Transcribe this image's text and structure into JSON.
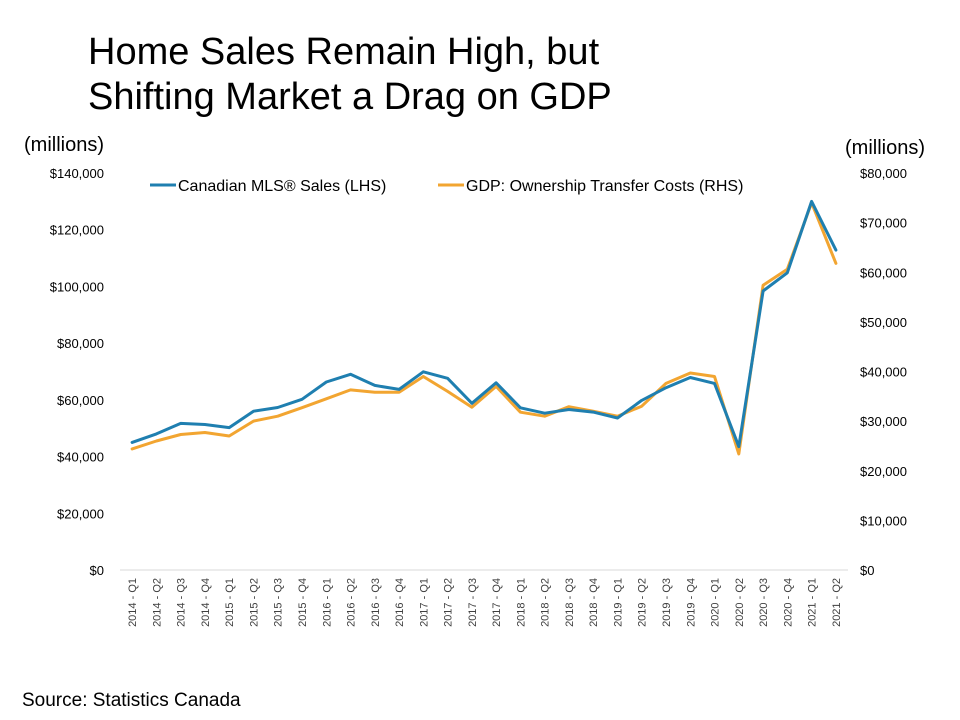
{
  "title_lines": [
    "Home Sales Remain High, but",
    "Shifting Market a Drag on GDP"
  ],
  "left_unit": "(millions)",
  "right_unit": "(millions)",
  "source": "Source: Statistics Canada",
  "colors": {
    "lhs": "#1f7fb0",
    "rhs": "#f2a531"
  },
  "chart_data": {
    "type": "line",
    "title": "Home Sales Remain High, but Shifting Market a Drag on GDP",
    "categories": [
      "2014 - Q1",
      "2014 - Q2",
      "2014 - Q3",
      "2014 - Q4",
      "2015 - Q1",
      "2015 - Q2",
      "2015 - Q3",
      "2015 - Q4",
      "2016 - Q1",
      "2016 - Q2",
      "2016 - Q3",
      "2016 - Q4",
      "2017 - Q1",
      "2017 - Q2",
      "2017 - Q3",
      "2017 - Q4",
      "2018 - Q1",
      "2018 - Q2",
      "2018 - Q3",
      "2018 - Q4",
      "2019 - Q1",
      "2019 - Q2",
      "2019 - Q3",
      "2019 - Q4",
      "2020 - Q1",
      "2020 - Q2",
      "2020 - Q3",
      "2020 - Q4",
      "2021 - Q1",
      "2021 - Q2"
    ],
    "left_axis": {
      "min": 0,
      "max": 140000,
      "ticks": [
        "$0",
        "$20,000",
        "$40,000",
        "$60,000",
        "$80,000",
        "$100,000",
        "$120,000",
        "$140,000"
      ]
    },
    "right_axis": {
      "min": 0,
      "max": 80000,
      "ticks": [
        "$0",
        "$10,000",
        "$20,000",
        "$30,000",
        "$40,000",
        "$50,000",
        "$60,000",
        "$70,000",
        "$80,000"
      ]
    },
    "series": [
      {
        "name": "Canadian MLS® Sales (LHS)",
        "axis": "left",
        "values": [
          45000,
          48000,
          51700,
          51300,
          50200,
          56000,
          57300,
          60200,
          66300,
          69000,
          65100,
          63700,
          69900,
          67600,
          58800,
          66000,
          57200,
          55300,
          56600,
          55700,
          53600,
          59800,
          64300,
          67900,
          65800,
          43500,
          98400,
          104800,
          130000,
          112800
        ]
      },
      {
        "name": "GDP: Ownership Transfer Costs (RHS)",
        "axis": "right",
        "values": [
          24400,
          26000,
          27300,
          27700,
          27000,
          30000,
          31000,
          32700,
          34500,
          36300,
          35800,
          35800,
          39000,
          36000,
          32800,
          37000,
          31800,
          31000,
          32900,
          32000,
          31000,
          33000,
          37600,
          39700,
          39000,
          23400,
          57400,
          60600,
          74000,
          61800
        ]
      }
    ],
    "legend_placement": "top",
    "grid": false
  }
}
